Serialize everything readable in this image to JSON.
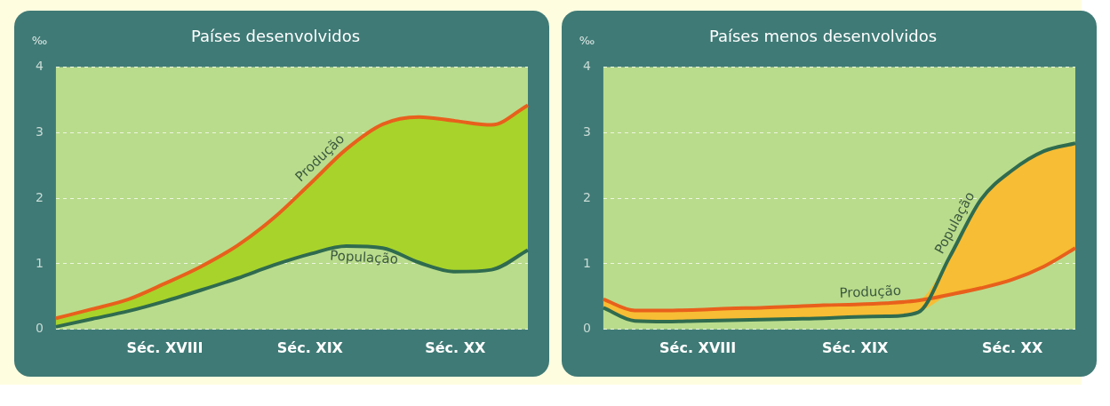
{
  "chart_data": [
    {
      "type": "line",
      "title": "Países desenvolvidos",
      "ylabel": "‰",
      "categories": [
        null,
        null,
        null,
        "Séc. XVIII",
        null,
        null,
        null,
        "Séc. XIX",
        null,
        null,
        null,
        "Séc. XX",
        null,
        null
      ],
      "ylim": [
        0,
        4
      ],
      "yticks": [
        0,
        1,
        2,
        3,
        4
      ],
      "grid": "y",
      "legend": false,
      "marker": "none",
      "line_style": "solid",
      "series": [
        {
          "name": "Produção",
          "color": "#e8601c",
          "values": [
            0.17,
            0.31,
            0.46,
            0.7,
            0.96,
            1.28,
            1.7,
            2.22,
            2.75,
            3.13,
            3.24,
            3.18,
            3.12,
            3.42
          ]
        },
        {
          "name": "População",
          "color": "#2f6b4f",
          "values": [
            0.04,
            0.16,
            0.28,
            0.43,
            0.6,
            0.78,
            0.98,
            1.15,
            1.27,
            1.24,
            1.02,
            0.88,
            0.91,
            1.21
          ],
          "lower": [
            0.04,
            0.16,
            0.28,
            0.43,
            0.6,
            0.78,
            0.98,
            1.15,
            1.27,
            1.24,
            1.02,
            0.88,
            0.91,
            1.21
          ],
          "upper": [
            0.17,
            0.31,
            0.46,
            0.7,
            0.96,
            1.28,
            1.7,
            2.22,
            2.75,
            3.13,
            3.24,
            3.18,
            3.12,
            3.42
          ]
        }
      ]
    },
    {
      "type": "line",
      "title": "Países menos desenvolvidos",
      "ylabel": "‰",
      "categories": [
        null,
        null,
        null,
        "Séc. XVIII",
        null,
        null,
        null,
        null,
        "Séc. XIX",
        null,
        null,
        null,
        null,
        "Séc. XX",
        null,
        null
      ],
      "ylim": [
        0,
        4
      ],
      "yticks": [
        0,
        1,
        2,
        3,
        4
      ],
      "grid": "y",
      "legend": false,
      "marker": "none",
      "line_style": "solid",
      "series": [
        {
          "name": "Produção",
          "color": "#e8601c",
          "values": [
            0.46,
            0.29,
            0.29,
            0.3,
            0.32,
            0.33,
            0.35,
            0.37,
            0.38,
            0.4,
            0.44,
            0.53,
            0.63,
            0.76,
            0.96,
            1.24
          ]
        },
        {
          "name": "População",
          "color": "#2f6b4f",
          "values": [
            0.33,
            0.13,
            0.12,
            0.13,
            0.14,
            0.15,
            0.16,
            0.17,
            0.19,
            0.2,
            0.26,
            1.1,
            1.98,
            2.43,
            2.72,
            2.84
          ],
          "lower": [
            0.33,
            0.13,
            0.12,
            0.13,
            0.14,
            0.15,
            0.16,
            0.17,
            0.19,
            0.2,
            0.26,
            0.53,
            0.63,
            0.76,
            0.96,
            1.24
          ],
          "upper": [
            0.46,
            0.29,
            0.29,
            0.3,
            0.32,
            0.33,
            0.35,
            0.37,
            0.38,
            0.4,
            0.44,
            1.1,
            1.98,
            2.43,
            2.72,
            2.84
          ]
        }
      ]
    }
  ]
}
